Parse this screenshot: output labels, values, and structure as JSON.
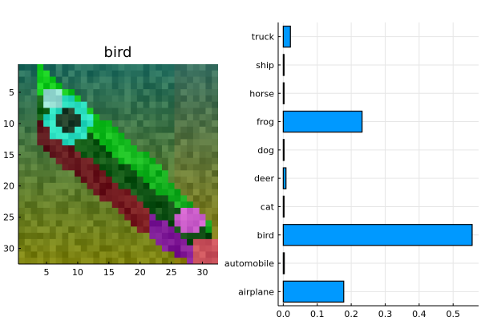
{
  "colors": {
    "bar_fill": "#0099ff",
    "bar_stroke": "#000000",
    "grid": "#e6e6e6",
    "axis": "#000000"
  },
  "chart_data": [
    {
      "type": "heatmap",
      "title": "bird",
      "description_of_content": "32x32 pixelated CIFAR image of a green bird on a green/brown background",
      "x_ticks": [
        5,
        10,
        15,
        20,
        25,
        30
      ],
      "y_ticks": [
        5,
        10,
        15,
        20,
        25,
        30
      ],
      "xlim": [
        0.5,
        32.5
      ],
      "ylim": [
        0.5,
        32.5
      ],
      "y_reversed": true,
      "grid": false
    },
    {
      "type": "bar",
      "orientation": "horizontal",
      "categories": [
        "airplane",
        "automobile",
        "bird",
        "cat",
        "deer",
        "dog",
        "frog",
        "horse",
        "ship",
        "truck"
      ],
      "values": [
        0.178,
        0.003,
        0.556,
        0.002,
        0.008,
        0.001,
        0.232,
        0.001,
        0.001,
        0.021
      ],
      "xlim": [
        -0.015,
        0.575
      ],
      "x_ticks": [
        0.0,
        0.1,
        0.2,
        0.3,
        0.4,
        0.5
      ],
      "x_tick_labels": [
        "0.0",
        "0.1",
        "0.2",
        "0.3",
        "0.4",
        "0.5"
      ],
      "grid": true,
      "legend": false
    }
  ]
}
